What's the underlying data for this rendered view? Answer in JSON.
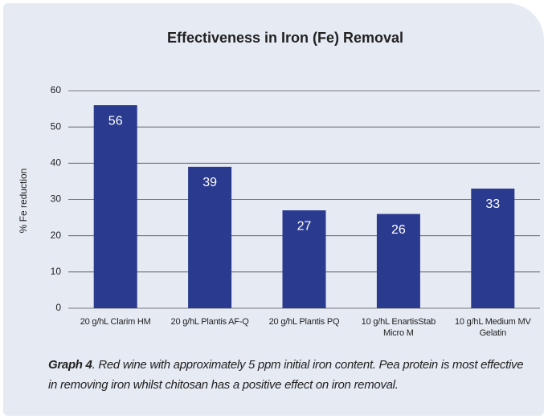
{
  "chart_data": {
    "type": "bar",
    "title": "Effectiveness in Iron (Fe) Removal",
    "ylabel": "% Fe reduction",
    "categories": [
      "20 g/hL Clarim HM",
      "20 g/hL Plantis AF-Q",
      "20 g/hL Plantis PQ",
      "10 g/hL EnartisStab Micro M",
      "10 g/hL Medium MV Gelatin"
    ],
    "values": [
      56,
      39,
      27,
      26,
      33
    ],
    "color": "#2a3a8f",
    "ylim": [
      0,
      60
    ],
    "yticks": [
      0,
      10,
      20,
      30,
      40,
      50,
      60
    ],
    "grid": true
  },
  "caption": {
    "label": "Graph 4",
    "text": ". Red wine with approximately 5 ppm initial iron content. Pea protein is most effective in removing iron whilst chitosan has a positive effect on iron removal."
  }
}
